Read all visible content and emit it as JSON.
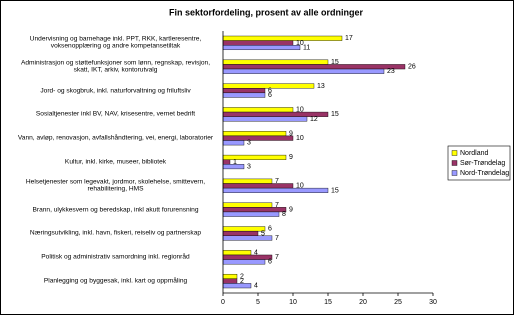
{
  "chart_data": {
    "type": "hbar",
    "title": "Fin sektorfordeling, prosent av alle ordninger",
    "categories": [
      "Undervisning og barnehage inkl. PPT, RKK, kartleresentre, voksenopplæring og andre kompetansetiltak",
      "Administrasjon og støttefunksjoner som lønn, regnskap, revisjon, skatt, IKT, arkiv, kontorutvalg",
      "Jord- og skogbruk, inkl. naturforvaltning og friluftsliv",
      "Sosialtjenester inkl BV, NAV, krisesentre, vernet bedrift",
      "Vann, avløp, renovasjon, avfallshåndtering, vei, energi, laboratorier",
      "Kultur, inkl. kirke, museer, bibliotek",
      "Helsetjenester som legevakt, jordmor, skolehelse, smittevern, rehabilitering, HMS",
      "Brann, ulykkesvern og beredskap, inkl akutt forurensning",
      "Næringsutvikling, inkl. havn, fiskeri, reiseliv og partnerskap",
      "Politisk og administrativ samordning inkl. regionråd",
      "Planlegging og byggesak, inkl. kart og oppmåling"
    ],
    "series": [
      {
        "name": "Nordland",
        "color": "#ffff00",
        "values": [
          17,
          15,
          13,
          10,
          9,
          9,
          7,
          7,
          6,
          4,
          2
        ]
      },
      {
        "name": "Sør-Trøndelag",
        "color": "#993366",
        "values": [
          10,
          26,
          6,
          15,
          10,
          1,
          10,
          9,
          5,
          7,
          2
        ]
      },
      {
        "name": "Nord-Trøndelag",
        "color": "#9999ff",
        "values": [
          11,
          23,
          6,
          12,
          3,
          3,
          15,
          8,
          7,
          6,
          4
        ]
      }
    ],
    "xlim": [
      0,
      30
    ],
    "xticks": [
      0,
      5,
      10,
      15,
      20,
      25,
      30
    ],
    "legend": "right"
  }
}
